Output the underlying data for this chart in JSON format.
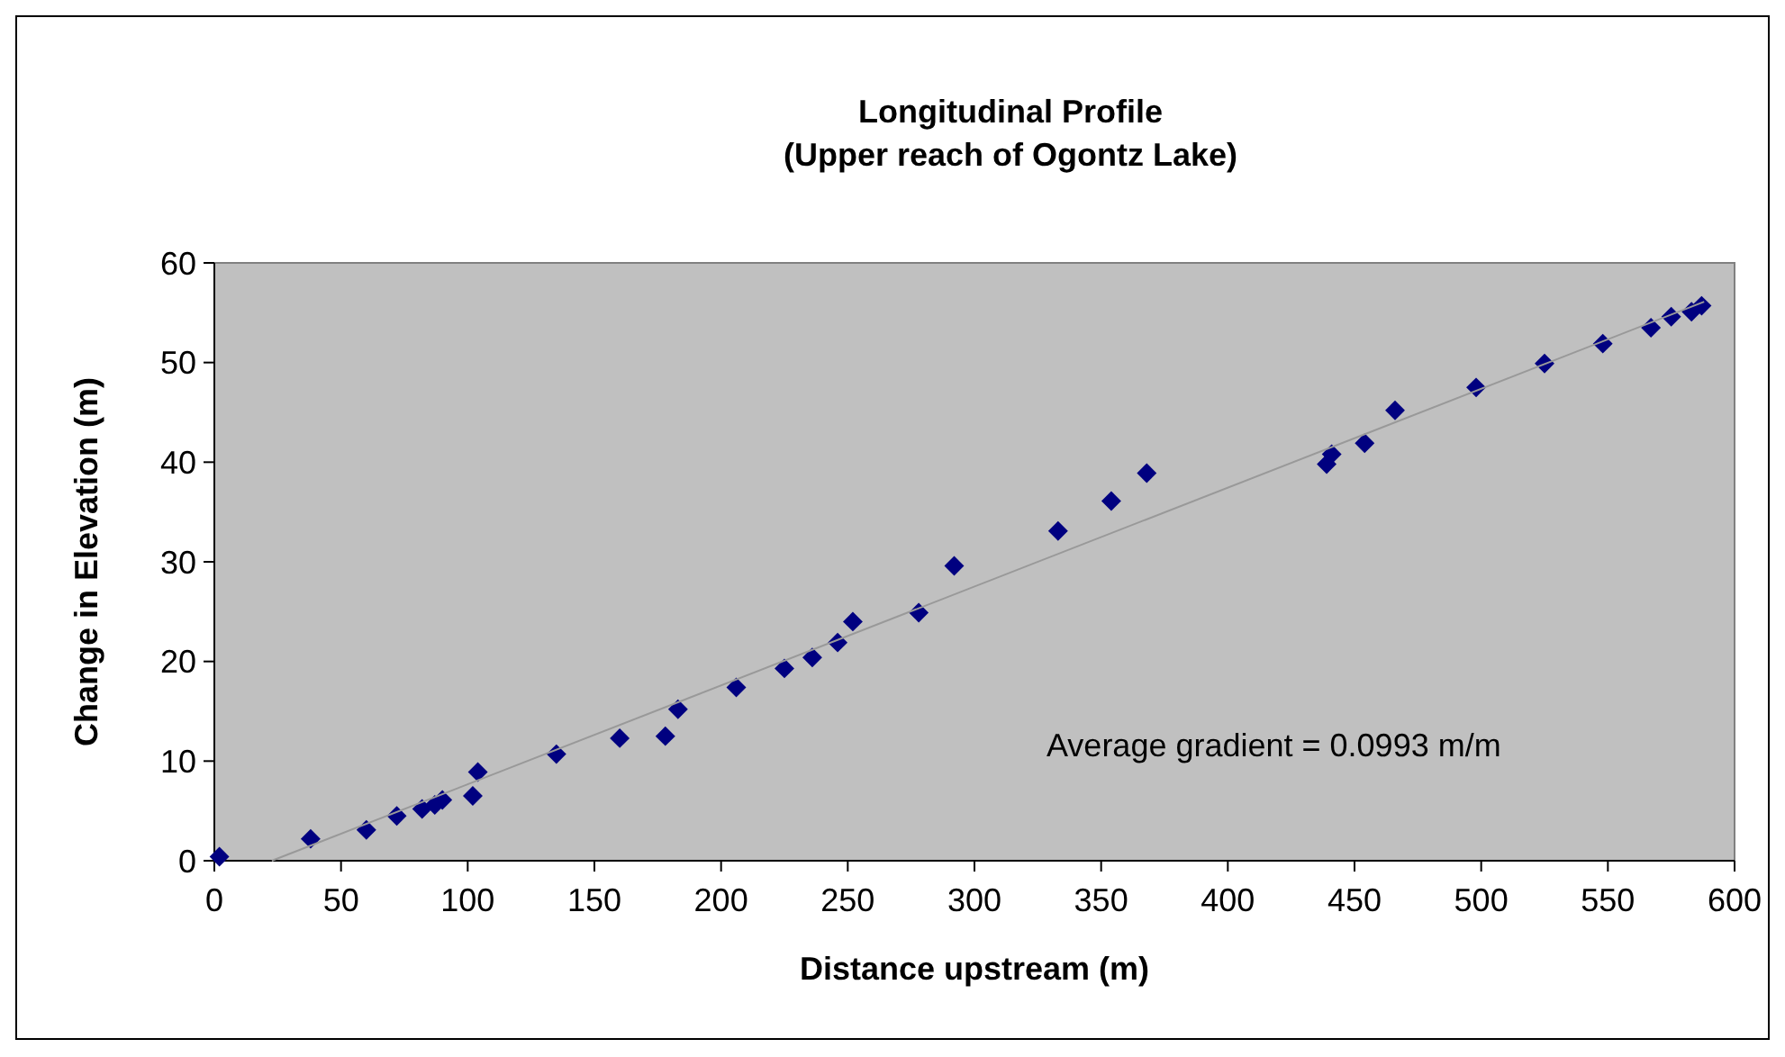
{
  "chart_data": {
    "type": "scatter",
    "title": "Longitudinal Profile",
    "subtitle": "(Upper reach of Ogontz Lake)",
    "xlabel": "Distance upstream (m)",
    "ylabel": "Change in Elevation (m)",
    "xlim": [
      0,
      600
    ],
    "ylim": [
      0,
      60
    ],
    "xticks": [
      0,
      50,
      100,
      150,
      200,
      250,
      300,
      350,
      400,
      450,
      500,
      550,
      600
    ],
    "yticks": [
      0,
      10,
      20,
      30,
      40,
      50,
      60
    ],
    "grid": false,
    "marker": "diamond",
    "annotations": [
      "Average gradient = 0.0993 m/m"
    ],
    "series": [
      {
        "color": "#000080",
        "x": [
          2,
          38,
          60,
          72,
          82,
          87,
          90,
          102,
          104,
          135,
          160,
          178,
          183,
          206,
          225,
          236,
          246,
          252,
          278,
          292,
          333,
          354,
          368,
          439,
          441,
          454,
          466,
          498,
          525,
          548,
          567,
          575,
          583,
          587
        ],
        "values": [
          0.4,
          2.2,
          3.1,
          4.5,
          5.2,
          5.6,
          6.1,
          6.5,
          8.9,
          10.7,
          12.3,
          12.5,
          15.2,
          17.4,
          19.3,
          20.4,
          21.9,
          24.0,
          24.9,
          29.6,
          33.1,
          36.1,
          38.9,
          39.8,
          40.8,
          41.9,
          45.2,
          47.5,
          49.9,
          51.9,
          53.5,
          54.6,
          55.1,
          55.7
        ]
      },
      {
        "type": "line",
        "color": "#999999",
        "line_style": "solid",
        "marker": "none",
        "x": [
          22.7,
          588
        ],
        "values": [
          0,
          56.1
        ]
      }
    ]
  }
}
